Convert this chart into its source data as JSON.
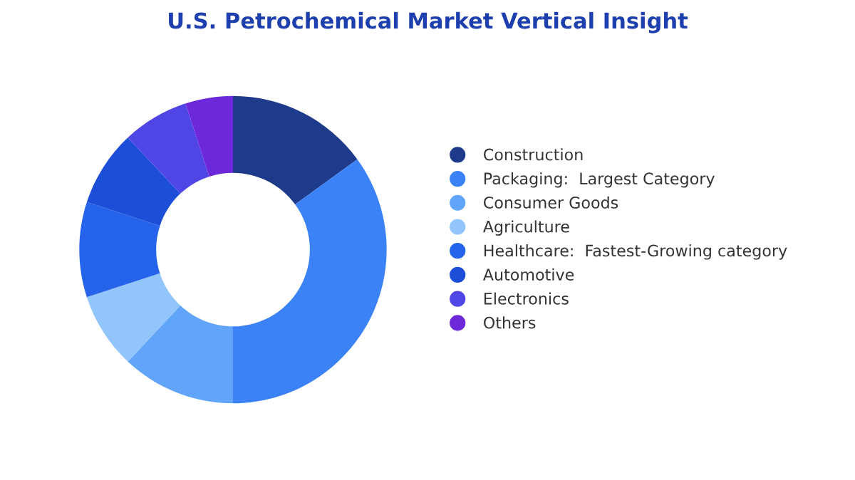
{
  "chart_data": {
    "type": "donut",
    "title": "U.S. Petrochemical Market Vertical Insight",
    "categories": [
      "Construction",
      "Packaging:  Largest Category",
      "Consumer Goods",
      "Agriculture",
      "Healthcare:  Fastest-Growing category",
      "Automotive",
      "Electronics",
      "Others"
    ],
    "values": [
      15,
      35,
      12,
      8,
      10,
      8,
      7,
      5
    ],
    "colors": [
      "#1e3a8a",
      "#3b82f6",
      "#60a5fa",
      "#93c5fd",
      "#2563eb",
      "#1d4ed8",
      "#4f46e5",
      "#6d28d9"
    ],
    "legend": "right"
  }
}
